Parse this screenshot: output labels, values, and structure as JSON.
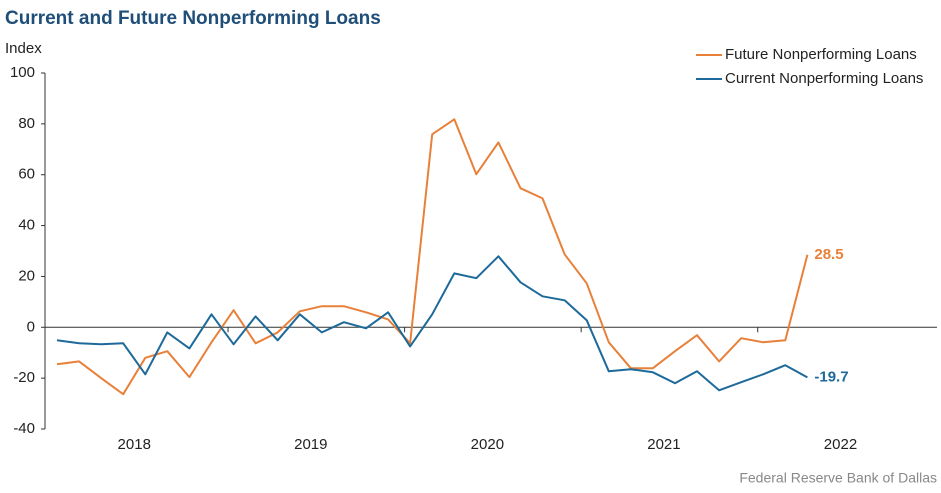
{
  "chart_data": {
    "type": "line",
    "title": "Current and Future Nonperforming  Loans",
    "y_label": "Index",
    "source": "Federal Reserve Bank of Dallas",
    "categories": [
      "2018",
      null,
      null,
      null,
      null,
      null,
      null,
      null,
      "2019",
      null,
      null,
      null,
      null,
      null,
      null,
      null,
      "2020",
      null,
      null,
      null,
      null,
      null,
      null,
      null,
      "2021",
      null,
      null,
      null,
      null,
      null,
      null,
      null,
      "2022",
      null,
      null
    ],
    "series": [
      {
        "name": "Future Nonperforming Loans",
        "color": "#e8803a",
        "values": [
          -14.5,
          -13.4,
          -20,
          -26.3,
          -12,
          -9.4,
          -19.6,
          -5.9,
          6.7,
          -6.3,
          -2,
          6.3,
          8.3,
          8.3,
          5.9,
          3.1,
          -6.3,
          75.9,
          81.8,
          60.2,
          72.7,
          54.7,
          50.7,
          28.7,
          17.3,
          -5.9,
          -16.1,
          -16.1,
          -9.4,
          -3.1,
          -13.4,
          -4.3,
          -5.9,
          -5.1,
          28.5
        ]
      },
      {
        "name": "Current Nonperforming Loans",
        "color": "#1d6a9a",
        "values": [
          -5.1,
          -6.3,
          -6.7,
          -6.3,
          -18.5,
          -2,
          -8.3,
          5.1,
          -6.7,
          4.3,
          -5.1,
          5.1,
          -2,
          2,
          -0.4,
          5.9,
          -7.5,
          5.1,
          21.2,
          19.3,
          27.9,
          17.7,
          12.2,
          10.6,
          2.8,
          -17.3,
          -16.5,
          -17.7,
          -22,
          -17.3,
          -24.8,
          -21.6,
          -18.5,
          -14.9,
          -19.7
        ]
      }
    ],
    "ylim": [
      -40,
      100
    ],
    "yticks": [
      -40,
      -20,
      0,
      20,
      40,
      60,
      80,
      100
    ],
    "legend": "top-right"
  }
}
